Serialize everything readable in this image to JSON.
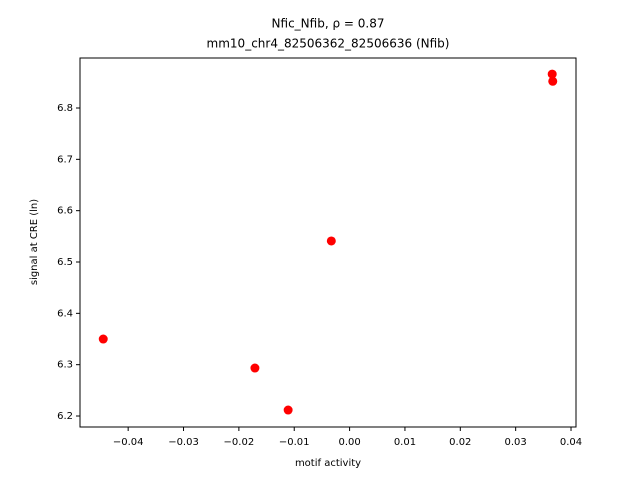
{
  "chart_data": {
    "type": "scatter",
    "title": "Nfic_Nfib, ρ = 0.87",
    "subtitle": "mm10_chr4_82506362_82506636 (Nfib)",
    "x_label": "motif activity",
    "y_label": "signal at CRE (ln)",
    "color": "#ff0000",
    "x": [
      -0.0445,
      -0.0171,
      -0.0111,
      -0.0033,
      0.0366,
      0.0367
    ],
    "values": [
      6.35,
      6.2935,
      6.2117,
      6.541,
      6.866,
      6.852
    ],
    "xlim": [
      -0.0487,
      0.0409
    ],
    "ylim": [
      6.1786,
      6.8974
    ],
    "xticks": [
      {
        "value": -0.04,
        "label": "−0.04"
      },
      {
        "value": -0.03,
        "label": "−0.03"
      },
      {
        "value": -0.02,
        "label": "−0.02"
      },
      {
        "value": -0.01,
        "label": "−0.01"
      },
      {
        "value": 0,
        "label": "0.00"
      },
      0.01,
      0.02,
      0.03,
      0.04
    ],
    "yticks": [
      6.2,
      6.3,
      6.4,
      6.5,
      6.6,
      6.7,
      6.8
    ],
    "grid": false
  }
}
